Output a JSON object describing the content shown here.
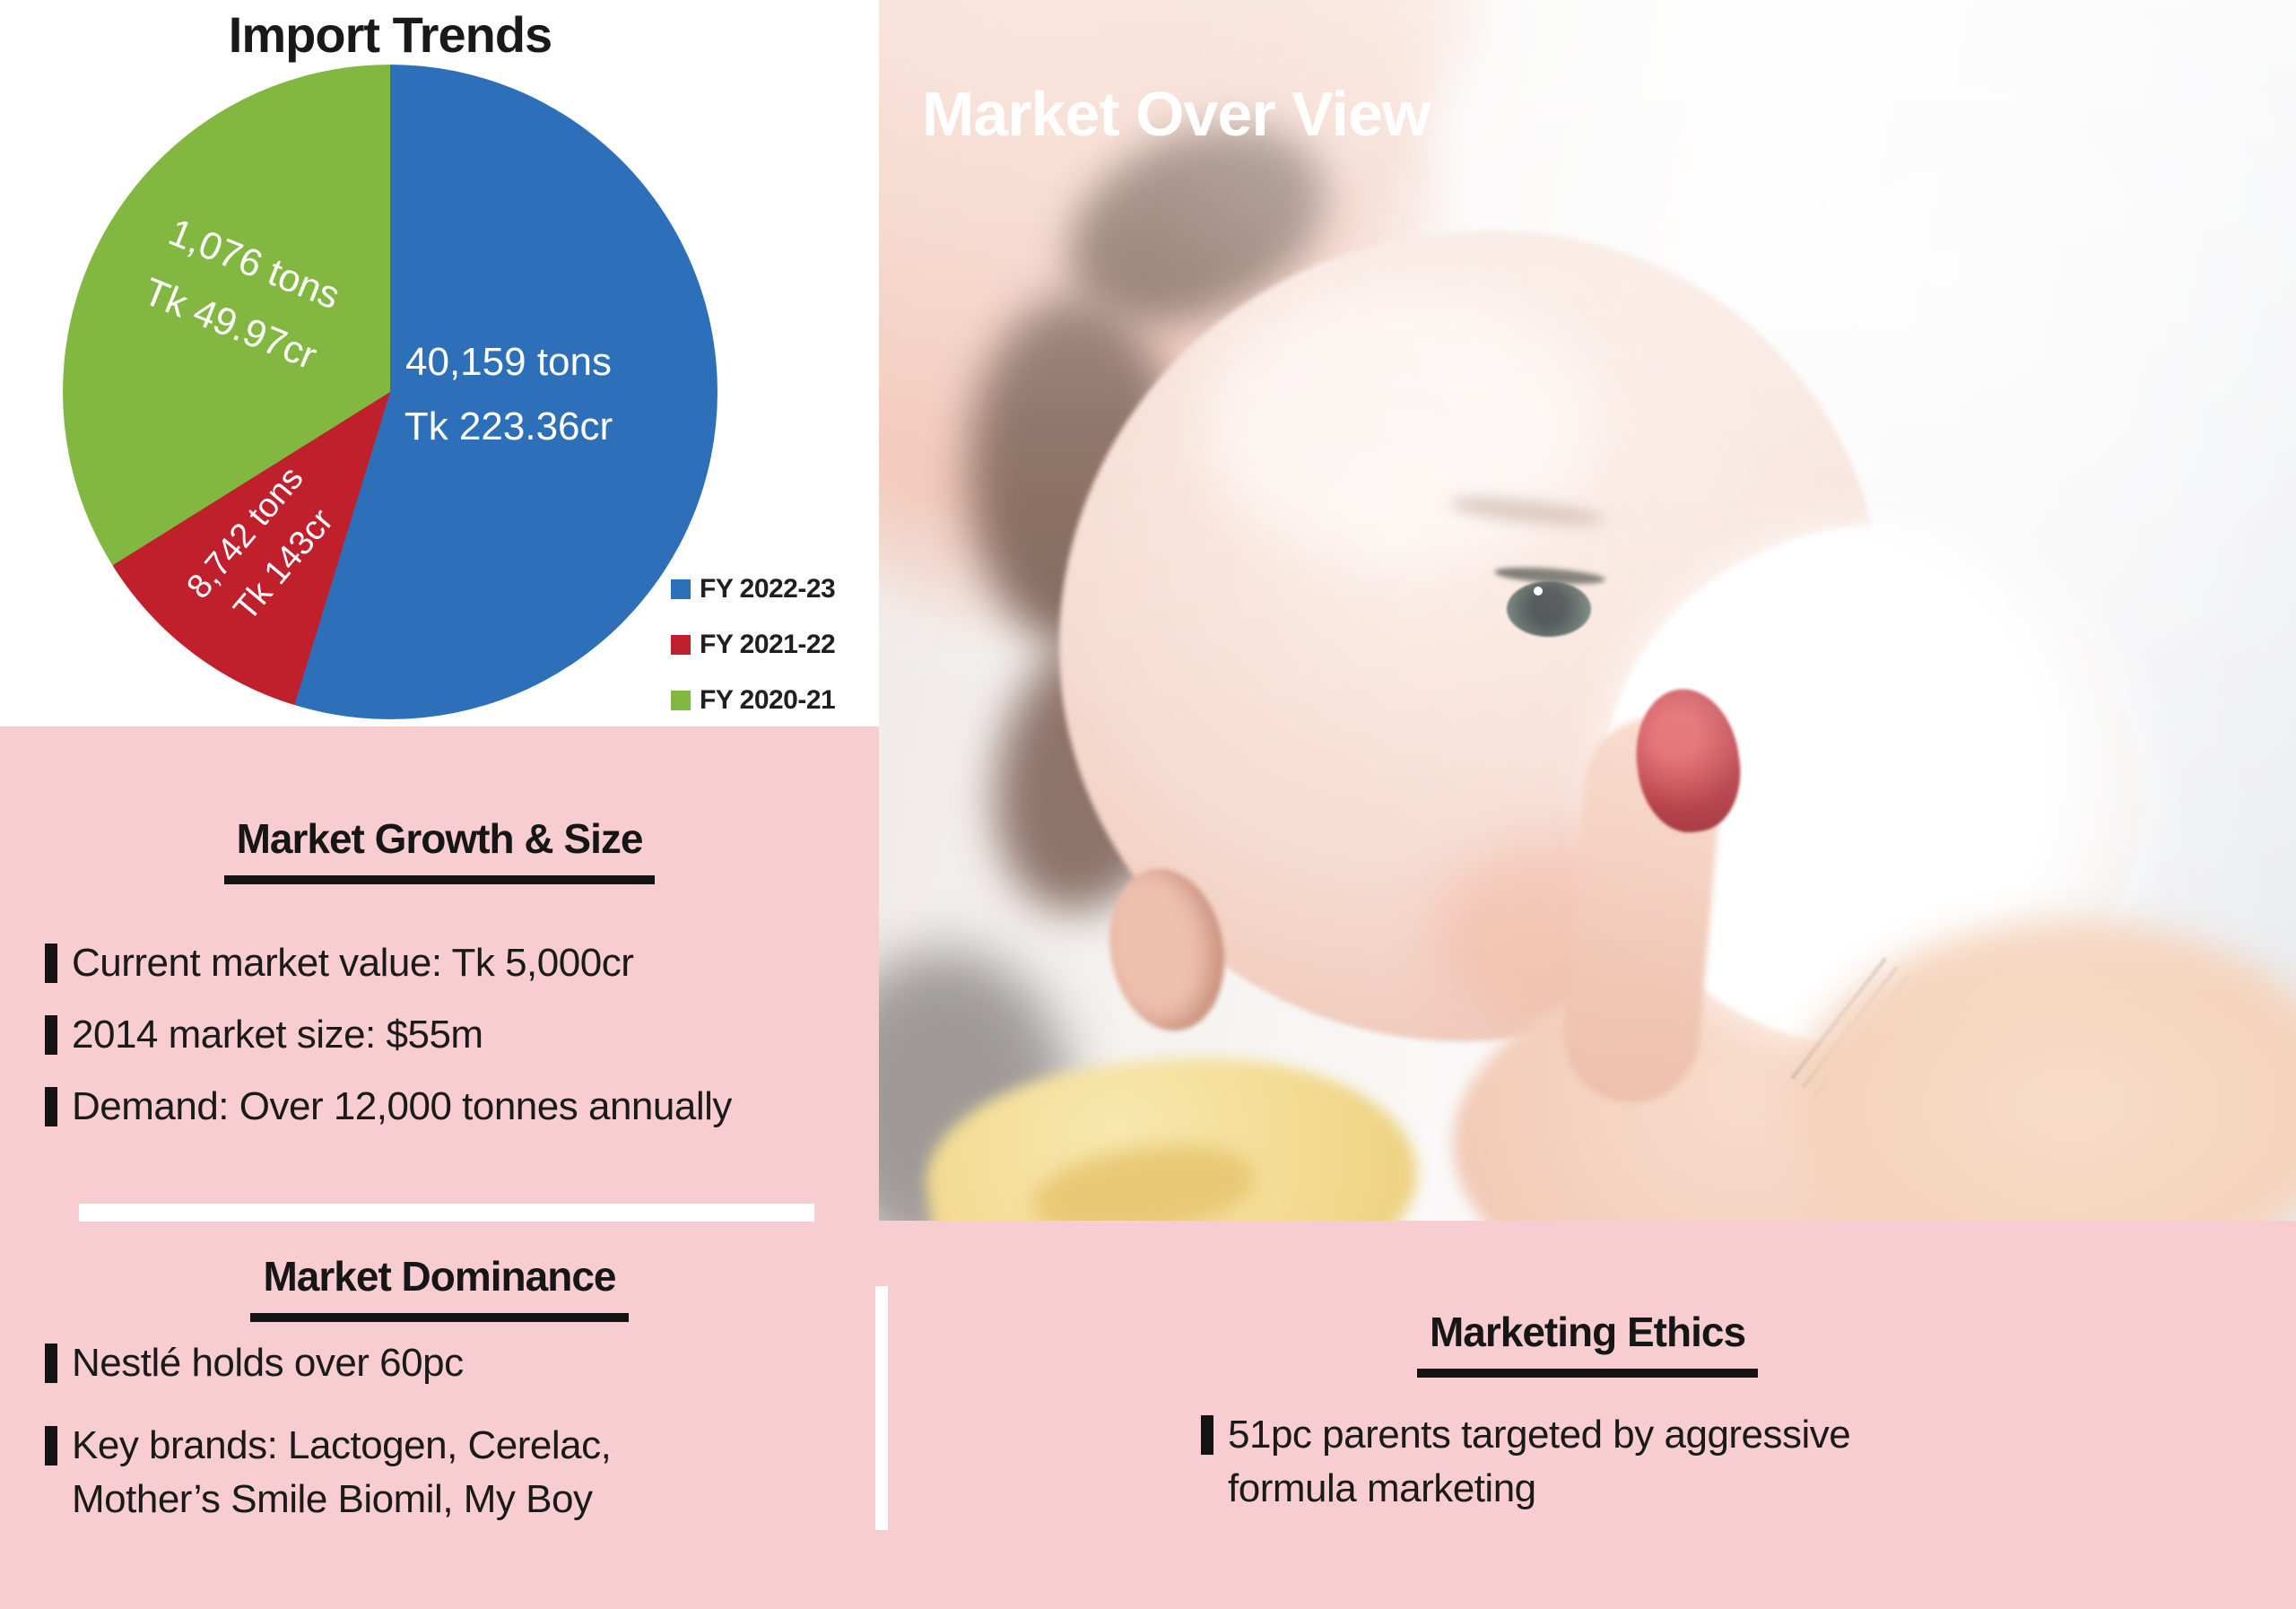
{
  "page": {
    "background_pink": "#f8cdd1",
    "panel_white": "#ffffff",
    "text_color": "#1a1a1a"
  },
  "banner": {
    "label": "Market Over View",
    "background": "#e32129",
    "text_color": "#ffffff"
  },
  "chart_data": {
    "type": "pie",
    "title": "Import Trends",
    "label_text_color": "#ffffff",
    "legend_position": "bottom-right inside panel",
    "slices": [
      {
        "legend": "FY 2022-23",
        "tons_label": "40,159 tons",
        "value_label": "Tk 223.36cr",
        "color": "#2e6fba",
        "start_deg": 0,
        "end_deg": 197
      },
      {
        "legend": "FY 2021-22",
        "tons_label": "8,742 tons",
        "value_label": "Tk 143cr",
        "color": "#c0202c",
        "start_deg": 197,
        "end_deg": 238
      },
      {
        "legend": "FY 2020-21",
        "tons_label": "1,076 tons",
        "value_label": "Tk 49.97cr",
        "color": "#82b841",
        "start_deg": 238,
        "end_deg": 360
      }
    ]
  },
  "sections": {
    "growth": {
      "heading": "Market Growth & Size",
      "bullets": [
        "Current market value: Tk 5,000cr",
        "2014 market size: $55m",
        "Demand: Over 12,000 tonnes annually"
      ]
    },
    "dominance": {
      "heading": "Market Dominance",
      "bullets": [
        "Nestlé holds over 60pc",
        "Key brands: Lactogen, Cerelac,\nMother’s Smile Biomil, My Boy"
      ]
    },
    "ethics": {
      "heading": "Marketing Ethics",
      "bullets": [
        "51pc parents targeted by aggressive\nformula marketing"
      ]
    }
  }
}
